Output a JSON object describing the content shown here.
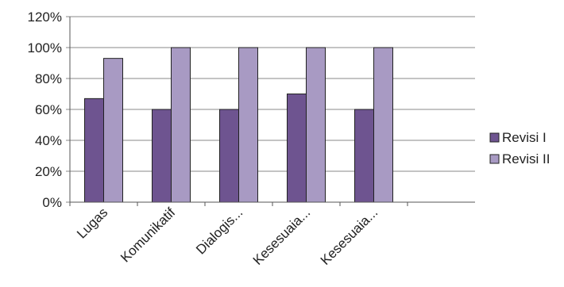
{
  "chart_data": {
    "type": "bar",
    "categories": [
      "Lugas",
      "Komunikatif",
      "Dialogis...",
      "Kesesuaia...",
      "Kesesuaia..."
    ],
    "series": [
      {
        "name": "Revisi I",
        "values": [
          67,
          60,
          60,
          70,
          60
        ],
        "color": "#6e5490"
      },
      {
        "name": "Revisi II",
        "values": [
          93,
          100,
          100,
          100,
          100
        ],
        "color": "#a89ac3"
      }
    ],
    "y_ticks": [
      "0%",
      "20%",
      "40%",
      "60%",
      "80%",
      "100%",
      "120%"
    ],
    "ylim": [
      0,
      120
    ],
    "grid": true,
    "legend_position": "right"
  }
}
